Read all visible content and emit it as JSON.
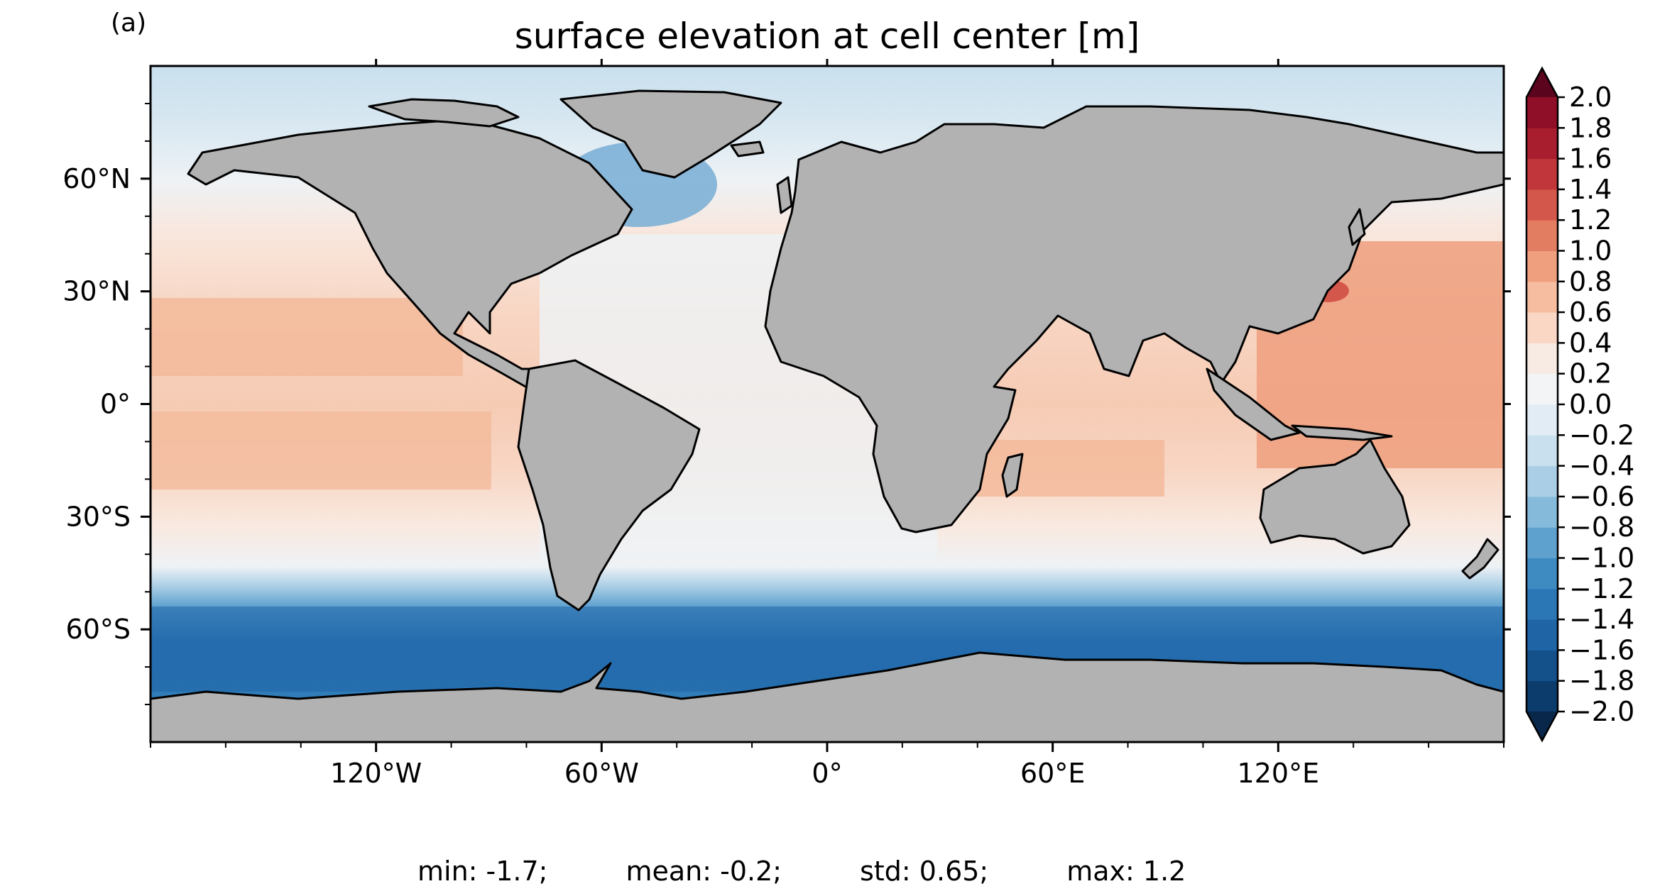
{
  "panel_label": "(a)",
  "title": "surface elevation at cell center [m]",
  "map": {
    "projection": "plate carree",
    "lon_range": [
      -180,
      180
    ],
    "lat_range": [
      -90,
      90
    ],
    "land_color": "#b2b2b2",
    "coastline_color": "#000000",
    "lat_ticks": [
      {
        "value": 60,
        "label": "60°N"
      },
      {
        "value": 30,
        "label": "30°N"
      },
      {
        "value": 0,
        "label": "0°"
      },
      {
        "value": -30,
        "label": "30°S"
      },
      {
        "value": -60,
        "label": "60°S"
      }
    ],
    "lon_ticks": [
      {
        "value": -120,
        "label": "120°W"
      },
      {
        "value": -60,
        "label": "60°W"
      },
      {
        "value": 0,
        "label": "0°"
      },
      {
        "value": 60,
        "label": "60°E"
      },
      {
        "value": 120,
        "label": "120°E"
      }
    ],
    "field_regions": [
      {
        "name": "north-polar",
        "level": -0.7
      },
      {
        "name": "pacific-tropics",
        "level": 0.6
      },
      {
        "name": "atlantic",
        "level": -0.1
      },
      {
        "name": "indian-ocean",
        "level": 0.4
      },
      {
        "name": "west-pacific-warm-pool",
        "level": 0.8
      },
      {
        "name": "southern-ocean",
        "level": -1.6
      }
    ]
  },
  "colorbar": {
    "colormap": "RdBu_r",
    "extend": "both",
    "vmin": -2.0,
    "vmax": 2.0,
    "step": 0.2,
    "tick_labels": [
      "2.0",
      "1.8",
      "1.6",
      "1.4",
      "1.2",
      "1.0",
      "0.8",
      "0.6",
      "0.4",
      "0.2",
      "0.0",
      "−0.2",
      "−0.4",
      "−0.6",
      "−0.8",
      "−1.0",
      "−1.2",
      "−1.4",
      "−1.6",
      "−1.8",
      "−2.0"
    ],
    "colors": [
      "#0b3c6c",
      "#14508a",
      "#1f64a5",
      "#2b77b6",
      "#3e8bc2",
      "#5ea1cf",
      "#85badb",
      "#a9cee5",
      "#c9e0ee",
      "#e1ecf4",
      "#f2f4f6",
      "#f8ebe4",
      "#fad6c4",
      "#f6bda1",
      "#ef9f7e",
      "#e37d62",
      "#d4574b",
      "#c1363b",
      "#a81e2f",
      "#8e0f27",
      "#6e0821"
    ],
    "low_extend_color": "#08274a",
    "high_extend_color": "#5a041d"
  },
  "stats": {
    "min": "min: -1.7;",
    "mean": "mean: -0.2;",
    "std": "std: 0.65;",
    "max": "max: 1.2"
  }
}
